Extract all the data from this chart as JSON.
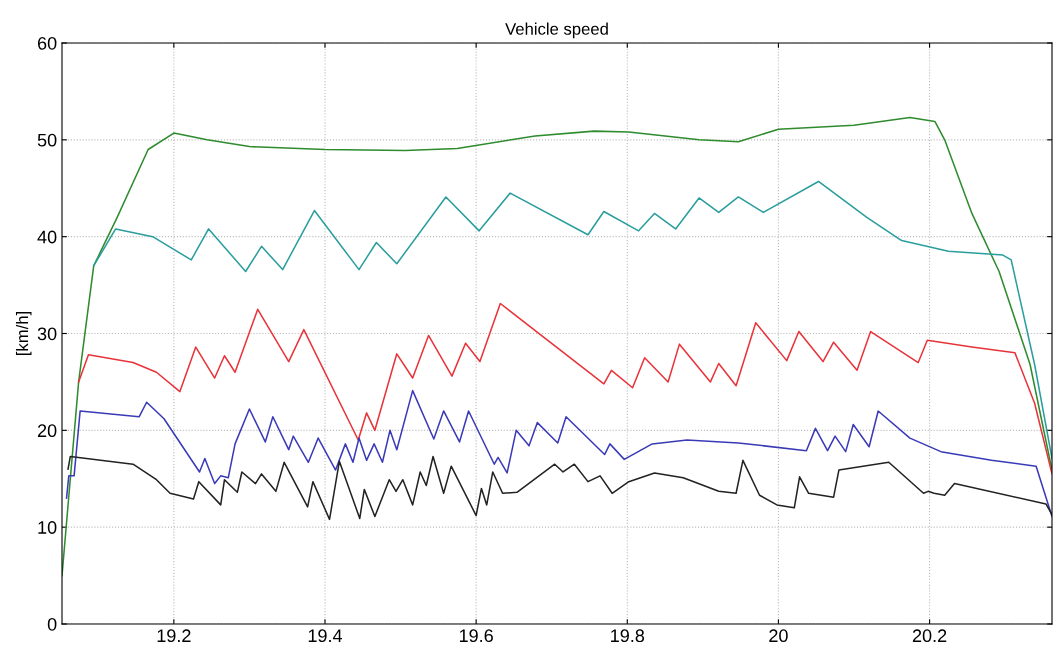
{
  "chart_data": {
    "type": "line",
    "title": "Vehicle speed",
    "ylabel": "[km/h]",
    "xlim": [
      19.052,
      20.362
    ],
    "ylim": [
      0,
      60
    ],
    "xticks": [
      19.2,
      19.4,
      19.6,
      19.8,
      20,
      20.2
    ],
    "yticks": [
      0,
      10,
      20,
      30,
      40,
      50,
      60
    ],
    "grid": true,
    "line_style": "solid",
    "marker": "none",
    "series": [
      {
        "color": "#2e8b2e",
        "x": [
          19.052,
          19.074,
          19.094,
          19.125,
          19.166,
          19.2,
          19.244,
          19.3,
          19.4,
          19.506,
          19.575,
          19.678,
          19.756,
          19.802,
          19.895,
          19.947,
          20.0,
          20.1,
          20.174,
          20.207,
          20.22,
          20.256,
          20.292,
          20.333,
          20.362
        ],
        "values": [
          5,
          25,
          37,
          42,
          49,
          50.7,
          50,
          49.3,
          49,
          48.9,
          49.1,
          50.4,
          50.9,
          50.8,
          50,
          49.8,
          51.1,
          51.5,
          52.3,
          51.9,
          50,
          42.4,
          36.4,
          26.8,
          15.9
        ]
      },
      {
        "color": "#2a9d9d",
        "x": [
          19.094,
          19.123,
          19.172,
          19.223,
          19.246,
          19.295,
          19.316,
          19.344,
          19.386,
          19.445,
          19.468,
          19.495,
          19.56,
          19.604,
          19.645,
          19.748,
          19.769,
          19.815,
          19.836,
          19.864,
          19.895,
          19.921,
          19.947,
          19.98,
          20.053,
          20.117,
          20.163,
          20.225,
          20.297,
          20.308,
          20.339,
          20.362
        ],
        "values": [
          37,
          40.8,
          40,
          37.6,
          40.8,
          36.4,
          39,
          36.6,
          42.7,
          36.6,
          39.4,
          37.2,
          44.1,
          40.6,
          44.5,
          40.2,
          42.6,
          40.6,
          42.4,
          40.8,
          44,
          42.5,
          44.1,
          42.5,
          45.7,
          42,
          39.6,
          38.5,
          38.1,
          37.6,
          26.8,
          17.1
        ]
      },
      {
        "color": "#e8333a",
        "x": [
          19.074,
          19.087,
          19.146,
          19.177,
          19.208,
          19.229,
          19.254,
          19.267,
          19.281,
          19.311,
          19.352,
          19.372,
          19.444,
          19.455,
          19.466,
          19.495,
          19.516,
          19.537,
          19.568,
          19.586,
          19.605,
          19.632,
          19.769,
          19.779,
          19.807,
          19.823,
          19.854,
          19.869,
          19.91,
          19.921,
          19.944,
          19.97,
          20.011,
          20.027,
          20.059,
          20.073,
          20.104,
          20.122,
          20.185,
          20.197,
          20.256,
          20.313,
          20.339,
          20.362
        ],
        "values": [
          25,
          27.8,
          27,
          26,
          24,
          28.6,
          25.4,
          27.7,
          26,
          32.5,
          27.1,
          30.4,
          19,
          21.8,
          20,
          27.9,
          25.4,
          29.8,
          25.6,
          29,
          27.1,
          33.1,
          24.8,
          26.2,
          24.4,
          27.5,
          25,
          28.9,
          25,
          26.9,
          24.6,
          31.1,
          27.2,
          30.2,
          27.1,
          29.1,
          26.2,
          30.2,
          27,
          29.3,
          28.6,
          28,
          22.8,
          15.5
        ]
      },
      {
        "color": "#3a3ab8",
        "x": [
          19.058,
          19.061,
          19.068,
          19.076,
          19.154,
          19.164,
          19.187,
          19.234,
          19.241,
          19.254,
          19.262,
          19.272,
          19.281,
          19.3,
          19.321,
          19.331,
          19.352,
          19.358,
          19.378,
          19.391,
          19.414,
          19.427,
          19.437,
          19.445,
          19.455,
          19.465,
          19.476,
          19.486,
          19.495,
          19.516,
          19.544,
          19.557,
          19.578,
          19.59,
          19.624,
          19.629,
          19.641,
          19.653,
          19.67,
          19.681,
          19.708,
          19.719,
          19.77,
          19.777,
          19.796,
          19.833,
          19.879,
          19.947,
          20.037,
          20.049,
          20.065,
          20.075,
          20.089,
          20.099,
          20.12,
          20.132,
          20.174,
          20.215,
          20.282,
          20.341,
          20.362
        ],
        "values": [
          13,
          15.3,
          15.3,
          22,
          21.4,
          22.9,
          21.2,
          15.7,
          17.1,
          14.5,
          15.3,
          15.1,
          18.6,
          22.2,
          18.8,
          21.4,
          18,
          19.4,
          16.7,
          19.2,
          15.9,
          18.6,
          16.7,
          19.2,
          16.9,
          18.6,
          16.7,
          20,
          18,
          24.1,
          19.1,
          22,
          18.8,
          22,
          16.5,
          17.2,
          15.6,
          20,
          18.4,
          20.8,
          18.7,
          21.4,
          17.5,
          18.6,
          17,
          18.6,
          19,
          18.7,
          17.9,
          20.2,
          17.9,
          19.4,
          17.8,
          20.6,
          18.3,
          22,
          19.2,
          17.8,
          16.9,
          16.3,
          11.1
        ]
      },
      {
        "color": "#222222",
        "x": [
          19.06,
          19.063,
          19.146,
          19.177,
          19.195,
          19.226,
          19.233,
          19.262,
          19.267,
          19.284,
          19.29,
          19.308,
          19.316,
          19.335,
          19.346,
          19.377,
          19.384,
          19.406,
          19.419,
          19.446,
          19.452,
          19.466,
          19.485,
          19.494,
          19.503,
          19.516,
          19.526,
          19.534,
          19.543,
          19.557,
          19.567,
          19.6,
          19.607,
          19.614,
          19.622,
          19.635,
          19.654,
          19.704,
          19.715,
          19.73,
          19.748,
          19.764,
          19.78,
          19.802,
          19.836,
          19.874,
          19.921,
          19.944,
          19.953,
          19.975,
          19.998,
          20.021,
          20.028,
          20.04,
          20.073,
          20.08,
          20.146,
          20.192,
          20.198,
          20.206,
          20.22,
          20.233,
          20.354,
          20.362
        ],
        "values": [
          16,
          17.3,
          16.5,
          14.9,
          13.5,
          12.9,
          14.7,
          12.3,
          14.9,
          13.6,
          15.7,
          14.5,
          15.5,
          13.7,
          16.7,
          12.1,
          14.7,
          10.8,
          16.8,
          10.9,
          13.9,
          11.1,
          14.9,
          13.7,
          14.9,
          12.3,
          15.7,
          14.3,
          17.3,
          13.5,
          16.3,
          11.2,
          14,
          12.3,
          15.7,
          13.5,
          13.6,
          16.5,
          15.7,
          16.5,
          14.7,
          15.3,
          13.5,
          14.7,
          15.6,
          15.1,
          13.7,
          13.5,
          16.9,
          13.3,
          12.3,
          12,
          15.2,
          13.5,
          13.1,
          15.9,
          16.7,
          13.5,
          13.7,
          13.5,
          13.3,
          14.5,
          12.4,
          11.3
        ]
      }
    ]
  }
}
